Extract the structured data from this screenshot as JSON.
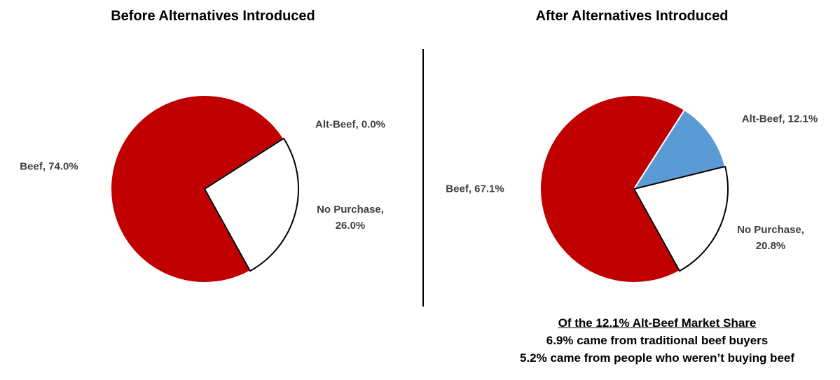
{
  "chart_data": [
    {
      "type": "pie",
      "title": "Before Alternatives Introduced",
      "values": [
        74.0,
        0.0,
        26.0
      ],
      "value_labels": [
        "Beef, 74.0%",
        "Alt-Beef, 0.0%",
        "No Purchase, 26.0%"
      ],
      "colors": [
        "#c00000",
        "#5b9bd5",
        "#ffffff"
      ]
    },
    {
      "type": "pie",
      "title": "After Alternatives Introduced",
      "values": [
        67.1,
        12.1,
        20.8
      ],
      "value_labels": [
        "Beef, 67.1%",
        "Alt-Beef, 12.1%",
        "No Purchase, 20.8%"
      ],
      "colors": [
        "#c00000",
        "#5b9bd5",
        "#ffffff"
      ],
      "annotations": [
        "Of the 12.1% Alt-Beef Market Share",
        "6.9% came from traditional beef buyers",
        "5.2% came from people who weren’t buying beef"
      ]
    }
  ]
}
